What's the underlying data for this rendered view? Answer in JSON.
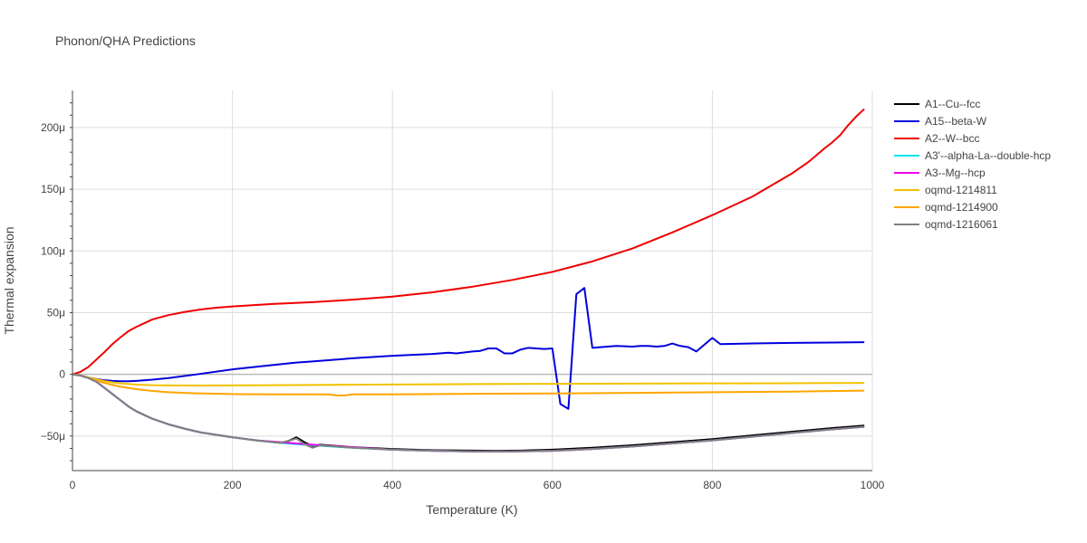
{
  "chart_data": {
    "type": "line",
    "title": "Phonon/QHA Predictions",
    "xlabel": "Temperature (K)",
    "ylabel": "Thermal expansion",
    "xlim": [
      0,
      1000
    ],
    "ylim": [
      -7.8e-05,
      0.00023
    ],
    "xticks": [
      0,
      200,
      400,
      600,
      800,
      1000
    ],
    "xtick_labels": [
      "0",
      "200",
      "400",
      "600",
      "800",
      "1000"
    ],
    "yticks": [
      -5e-05,
      0,
      5e-05,
      0.0001,
      0.00015,
      0.0002
    ],
    "ytick_labels": [
      "−50μ",
      "0",
      "50μ",
      "100μ",
      "150μ",
      "200μ"
    ],
    "grid": true,
    "legend_position": "right",
    "series": [
      {
        "name": "A1--Cu--fcc",
        "color": "#000000",
        "x": [
          0,
          10,
          20,
          30,
          40,
          50,
          60,
          70,
          80,
          100,
          120,
          140,
          160,
          180,
          200,
          230,
          260,
          270,
          280,
          290,
          300,
          310,
          350,
          400,
          450,
          500,
          530,
          560,
          600,
          650,
          700,
          750,
          800,
          850,
          900,
          950,
          990
        ],
        "y": [
          0,
          -1e-06,
          -3e-06,
          -6e-06,
          -1.1e-05,
          -1.6e-05,
          -2.1e-05,
          -2.6e-05,
          -3e-05,
          -3.6e-05,
          -4.05e-05,
          -4.4e-05,
          -4.7e-05,
          -4.9e-05,
          -5.1e-05,
          -5.35e-05,
          -5.55e-05,
          -5.4e-05,
          -5.1e-05,
          -5.5e-05,
          -5.8e-05,
          -5.7e-05,
          -5.9e-05,
          -6.05e-05,
          -6.15e-05,
          -6.18e-05,
          -6.2e-05,
          -6.18e-05,
          -6.1e-05,
          -5.95e-05,
          -5.75e-05,
          -5.5e-05,
          -5.25e-05,
          -4.95e-05,
          -4.65e-05,
          -4.35e-05,
          -4.15e-05
        ]
      },
      {
        "name": "A15--beta-W",
        "color": "#0000dd",
        "x": [
          0,
          10,
          20,
          30,
          40,
          50,
          60,
          70,
          80,
          100,
          120,
          150,
          200,
          250,
          280,
          300,
          350,
          400,
          450,
          470,
          480,
          500,
          510,
          520,
          530,
          540,
          550,
          560,
          570,
          580,
          590,
          600,
          610,
          620,
          630,
          640,
          650,
          660,
          680,
          700,
          710,
          720,
          730,
          740,
          750,
          760,
          770,
          780,
          790,
          800,
          810,
          850,
          900,
          950,
          990
        ],
        "y": [
          0,
          -1e-06,
          -2.5e-06,
          -3.8e-06,
          -4.8e-06,
          -5.3e-06,
          -5.6e-06,
          -5.6e-06,
          -5.3e-06,
          -4.3e-06,
          -3e-06,
          -5e-07,
          4e-06,
          7.5e-06,
          9.5e-06,
          1.05e-05,
          1.3e-05,
          1.5e-05,
          1.65e-05,
          1.75e-05,
          1.7e-05,
          1.85e-05,
          1.9e-05,
          2.1e-05,
          2.1e-05,
          1.7e-05,
          1.7e-05,
          2e-05,
          2.15e-05,
          2.1e-05,
          2.05e-05,
          2.1e-05,
          -2.4e-05,
          -2.8e-05,
          6.5e-05,
          7e-05,
          2.15e-05,
          2.2e-05,
          2.3e-05,
          2.25e-05,
          2.3e-05,
          2.3e-05,
          2.25e-05,
          2.3e-05,
          2.5e-05,
          2.3e-05,
          2.2e-05,
          1.85e-05,
          2.4e-05,
          2.95e-05,
          2.45e-05,
          2.5e-05,
          2.55e-05,
          2.58e-05,
          2.6e-05
        ]
      },
      {
        "name": "A2--W--bcc",
        "color": "#ee0000",
        "x": [
          0,
          10,
          20,
          30,
          40,
          50,
          60,
          70,
          80,
          90,
          100,
          120,
          140,
          160,
          180,
          200,
          250,
          300,
          350,
          400,
          450,
          500,
          550,
          600,
          650,
          700,
          750,
          800,
          850,
          900,
          920,
          940,
          950,
          960,
          970,
          980,
          990
        ],
        "y": [
          0,
          2e-06,
          6e-06,
          1.2e-05,
          1.8e-05,
          2.45e-05,
          3e-05,
          3.5e-05,
          3.85e-05,
          4.15e-05,
          4.45e-05,
          4.8e-05,
          5.05e-05,
          5.25e-05,
          5.4e-05,
          5.5e-05,
          5.7e-05,
          5.85e-05,
          6.05e-05,
          6.3e-05,
          6.65e-05,
          7.1e-05,
          7.65e-05,
          8.3e-05,
          9.15e-05,
          0.000102,
          0.000115,
          0.000129,
          0.000144,
          0.000163,
          0.000172,
          0.000183,
          0.000188,
          0.000194,
          0.000202,
          0.000209,
          0.000215
        ]
      },
      {
        "name": "A3'--alpha-La--double-hcp",
        "color": "#00e5ee",
        "x": [
          0,
          10,
          20,
          30,
          40,
          50,
          60,
          70,
          80,
          100,
          120,
          140,
          160,
          180,
          200,
          230,
          260,
          290,
          300,
          350,
          400,
          450,
          500,
          550,
          600,
          650,
          700,
          750,
          800,
          850,
          900,
          950,
          990
        ],
        "y": [
          0,
          -1e-06,
          -3e-06,
          -6e-06,
          -1.1e-05,
          -1.6e-05,
          -2.1e-05,
          -2.6e-05,
          -3e-05,
          -3.6e-05,
          -4.05e-05,
          -4.4e-05,
          -4.7e-05,
          -4.9e-05,
          -5.1e-05,
          -5.35e-05,
          -5.55e-05,
          -5.7e-05,
          -5.75e-05,
          -5.95e-05,
          -6.1e-05,
          -6.2e-05,
          -6.25e-05,
          -6.25e-05,
          -6.2e-05,
          -6.05e-05,
          -5.85e-05,
          -5.6e-05,
          -5.35e-05,
          -5.05e-05,
          -4.75e-05,
          -4.45e-05,
          -4.25e-05
        ]
      },
      {
        "name": "A3--Mg--hcp",
        "color": "#ee00ee",
        "x": [
          0,
          10,
          20,
          30,
          40,
          50,
          60,
          70,
          80,
          100,
          120,
          140,
          160,
          180,
          200,
          230,
          260,
          290,
          300,
          350,
          400,
          450,
          500,
          550,
          600,
          650,
          700,
          750,
          800,
          850,
          900,
          950,
          990
        ],
        "y": [
          0,
          -1e-06,
          -3e-06,
          -6e-06,
          -1.1e-05,
          -1.6e-05,
          -2.1e-05,
          -2.6e-05,
          -3e-05,
          -3.6e-05,
          -4.05e-05,
          -4.4e-05,
          -4.7e-05,
          -4.9e-05,
          -5.1e-05,
          -5.35e-05,
          -5.5e-05,
          -5.65e-05,
          -5.7e-05,
          -5.9e-05,
          -6.1e-05,
          -6.2e-05,
          -6.25e-05,
          -6.25e-05,
          -6.2e-05,
          -6.05e-05,
          -5.85e-05,
          -5.6e-05,
          -5.35e-05,
          -5.05e-05,
          -4.75e-05,
          -4.45e-05,
          -4.25e-05
        ]
      },
      {
        "name": "oqmd-1214811",
        "color": "#f2c200",
        "x": [
          0,
          10,
          20,
          30,
          40,
          50,
          60,
          80,
          100,
          120,
          150,
          200,
          300,
          400,
          500,
          600,
          700,
          800,
          900,
          990
        ],
        "y": [
          0,
          -1e-06,
          -2.5e-06,
          -4e-06,
          -5.5e-06,
          -6.5e-06,
          -7.3e-06,
          -8.3e-06,
          -8.8e-06,
          -9e-06,
          -9.1e-06,
          -9e-06,
          -8.6e-06,
          -8.2e-06,
          -7.9e-06,
          -7.7e-06,
          -7.5e-06,
          -7.3e-06,
          -7.2e-06,
          -7e-06
        ]
      },
      {
        "name": "oqmd-1214900",
        "color": "#ffa500",
        "x": [
          0,
          10,
          20,
          30,
          40,
          50,
          60,
          80,
          100,
          120,
          150,
          200,
          250,
          300,
          320,
          330,
          340,
          350,
          400,
          500,
          600,
          700,
          800,
          900,
          990
        ],
        "y": [
          0,
          -1e-06,
          -3e-06,
          -5e-06,
          -7e-06,
          -8.5e-06,
          -1e-05,
          -1.2e-05,
          -1.35e-05,
          -1.45e-05,
          -1.53e-05,
          -1.6e-05,
          -1.62e-05,
          -1.62e-05,
          -1.63e-05,
          -1.7e-05,
          -1.72e-05,
          -1.62e-05,
          -1.62e-05,
          -1.58e-05,
          -1.55e-05,
          -1.5e-05,
          -1.45e-05,
          -1.4e-05,
          -1.32e-05
        ]
      },
      {
        "name": "oqmd-1216061",
        "color": "#808080",
        "x": [
          0,
          10,
          20,
          30,
          40,
          50,
          60,
          70,
          80,
          100,
          120,
          140,
          160,
          180,
          200,
          230,
          260,
          270,
          280,
          290,
          300,
          310,
          350,
          400,
          450,
          500,
          550,
          600,
          650,
          700,
          750,
          800,
          850,
          900,
          950,
          990
        ],
        "y": [
          0,
          -1e-06,
          -3e-06,
          -6e-06,
          -1.1e-05,
          -1.6e-05,
          -2.1e-05,
          -2.6e-05,
          -3e-05,
          -3.6e-05,
          -4.05e-05,
          -4.4e-05,
          -4.7e-05,
          -4.9e-05,
          -5.1e-05,
          -5.35e-05,
          -5.55e-05,
          -5.4e-05,
          -5.2e-05,
          -5.65e-05,
          -5.95e-05,
          -5.75e-05,
          -5.95e-05,
          -6.1e-05,
          -6.2e-05,
          -6.25e-05,
          -6.25e-05,
          -6.2e-05,
          -6.05e-05,
          -5.85e-05,
          -5.6e-05,
          -5.35e-05,
          -5.05e-05,
          -4.75e-05,
          -4.45e-05,
          -4.25e-05
        ]
      }
    ]
  }
}
